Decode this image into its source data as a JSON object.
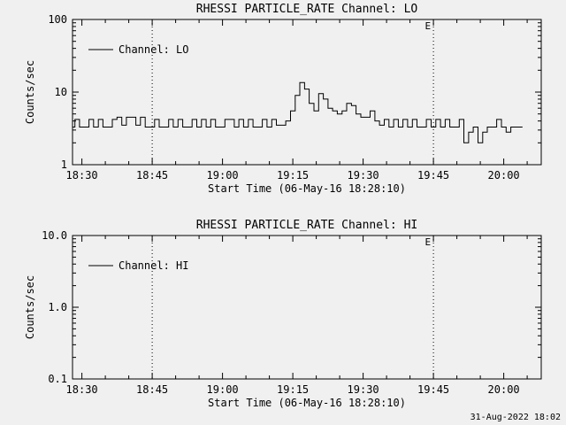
{
  "timestamp": "31-Aug-2022 18:02",
  "colors": {
    "background": "#f0f0f0",
    "foreground": "#000000"
  },
  "chart_data": [
    {
      "type": "line",
      "title": "RHESSI PARTICLE_RATE Channel: LO",
      "ylabel": "Counts/sec",
      "xlabel": "Start Time (06-May-16 18:28:10)",
      "legend": "Channel: LO",
      "yscale": "log",
      "ylim": [
        1,
        100
      ],
      "yticks": [
        {
          "v": 1,
          "label": "1"
        },
        {
          "v": 10,
          "label": "10"
        },
        {
          "v": 100,
          "label": "100"
        }
      ],
      "xlim": [
        0,
        100
      ],
      "xticks": [
        {
          "m": 2,
          "label": "18:30"
        },
        {
          "m": 17,
          "label": "18:45"
        },
        {
          "m": 32,
          "label": "19:00"
        },
        {
          "m": 47,
          "label": "19:15"
        },
        {
          "m": 62,
          "label": "19:30"
        },
        {
          "m": 77,
          "label": "19:45"
        },
        {
          "m": 92,
          "label": "20:00"
        }
      ],
      "x_minor_every": 5,
      "x_minor_offset": 2,
      "grid": false,
      "legend_position": "upper-left-inside",
      "events": [
        {
          "m": 17,
          "label": ""
        },
        {
          "m": 77,
          "label": "E"
        }
      ],
      "series": [
        {
          "name": "Channel: LO",
          "points": [
            [
              0,
              3.3
            ],
            [
              1,
              4.2
            ],
            [
              2,
              3.3
            ],
            [
              3,
              3.3
            ],
            [
              4,
              4.2
            ],
            [
              5,
              3.3
            ],
            [
              6,
              4.2
            ],
            [
              7,
              3.3
            ],
            [
              8,
              3.3
            ],
            [
              9,
              4.2
            ],
            [
              10,
              4.5
            ],
            [
              11,
              3.5
            ],
            [
              12,
              4.5
            ],
            [
              13,
              4.5
            ],
            [
              14,
              3.5
            ],
            [
              15,
              4.5
            ],
            [
              16,
              3.3
            ],
            [
              17,
              3.3
            ],
            [
              18,
              4.2
            ],
            [
              19,
              3.3
            ],
            [
              20,
              3.3
            ],
            [
              21,
              4.2
            ],
            [
              22,
              3.3
            ],
            [
              23,
              4.2
            ],
            [
              24,
              3.3
            ],
            [
              25,
              3.3
            ],
            [
              26,
              4.2
            ],
            [
              27,
              3.3
            ],
            [
              28,
              4.2
            ],
            [
              29,
              3.3
            ],
            [
              30,
              4.2
            ],
            [
              31,
              3.3
            ],
            [
              32,
              3.3
            ],
            [
              33,
              4.2
            ],
            [
              34,
              4.2
            ],
            [
              35,
              3.3
            ],
            [
              36,
              4.2
            ],
            [
              37,
              3.3
            ],
            [
              38,
              4.2
            ],
            [
              39,
              3.3
            ],
            [
              40,
              3.3
            ],
            [
              41,
              4.2
            ],
            [
              42,
              3.3
            ],
            [
              43,
              4.2
            ],
            [
              44,
              3.5
            ],
            [
              45,
              3.5
            ],
            [
              46,
              4.0
            ],
            [
              47,
              5.5
            ],
            [
              48,
              9.0
            ],
            [
              49,
              13.5
            ],
            [
              50,
              11.0
            ],
            [
              51,
              7.0
            ],
            [
              52,
              5.5
            ],
            [
              53,
              9.5
            ],
            [
              54,
              8.0
            ],
            [
              55,
              6.0
            ],
            [
              56,
              5.5
            ],
            [
              57,
              5.0
            ],
            [
              58,
              5.5
            ],
            [
              59,
              7.0
            ],
            [
              60,
              6.5
            ],
            [
              61,
              5.0
            ],
            [
              62,
              4.5
            ],
            [
              63,
              4.5
            ],
            [
              64,
              5.5
            ],
            [
              65,
              4.0
            ],
            [
              66,
              3.5
            ],
            [
              67,
              4.2
            ],
            [
              68,
              3.3
            ],
            [
              69,
              4.2
            ],
            [
              70,
              3.3
            ],
            [
              71,
              4.2
            ],
            [
              72,
              3.3
            ],
            [
              73,
              4.2
            ],
            [
              74,
              3.3
            ],
            [
              75,
              3.3
            ],
            [
              76,
              4.2
            ],
            [
              77,
              3.3
            ],
            [
              78,
              4.2
            ],
            [
              79,
              3.3
            ],
            [
              80,
              4.2
            ],
            [
              81,
              3.3
            ],
            [
              82,
              3.3
            ],
            [
              83,
              4.2
            ],
            [
              84,
              2.0
            ],
            [
              85,
              2.8
            ],
            [
              86,
              3.3
            ],
            [
              87,
              2.0
            ],
            [
              88,
              2.8
            ],
            [
              89,
              3.3
            ],
            [
              90,
              3.3
            ],
            [
              91,
              4.2
            ],
            [
              92,
              3.3
            ],
            [
              93,
              2.8
            ],
            [
              94,
              3.3
            ],
            [
              95,
              3.3
            ],
            [
              96,
              3.3
            ]
          ]
        }
      ]
    },
    {
      "type": "line",
      "title": "RHESSI PARTICLE_RATE Channel: HI",
      "ylabel": "Counts/sec",
      "xlabel": "Start Time (06-May-16 18:28:10)",
      "legend": "Channel: HI",
      "yscale": "log",
      "ylim": [
        0.1,
        10
      ],
      "yticks": [
        {
          "v": 0.1,
          "label": "0.1"
        },
        {
          "v": 1,
          "label": "1.0"
        },
        {
          "v": 10,
          "label": "10.0"
        }
      ],
      "xlim": [
        0,
        100
      ],
      "xticks": [
        {
          "m": 2,
          "label": "18:30"
        },
        {
          "m": 17,
          "label": "18:45"
        },
        {
          "m": 32,
          "label": "19:00"
        },
        {
          "m": 47,
          "label": "19:15"
        },
        {
          "m": 62,
          "label": "19:30"
        },
        {
          "m": 77,
          "label": "19:45"
        },
        {
          "m": 92,
          "label": "20:00"
        }
      ],
      "x_minor_every": 5,
      "x_minor_offset": 2,
      "grid": false,
      "legend_position": "upper-left-inside",
      "events": [
        {
          "m": 17,
          "label": ""
        },
        {
          "m": 77,
          "label": "E"
        }
      ],
      "series": [
        {
          "name": "Channel: HI",
          "points": []
        }
      ]
    }
  ]
}
